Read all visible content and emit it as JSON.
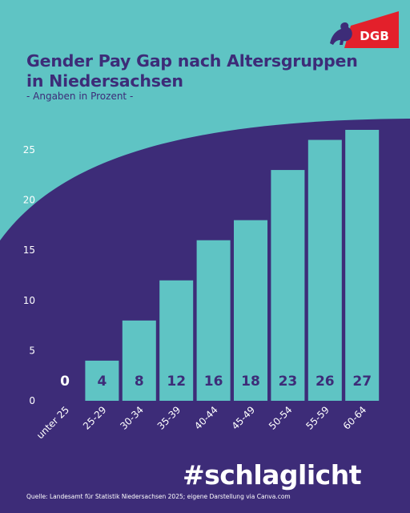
{
  "header": {
    "title": "Gender Pay Gap nach Altersgruppen in Niedersachsen",
    "subtitle": "- Angaben in Prozent -",
    "logo_text": "DGB"
  },
  "footer": {
    "hashtag": "#schlaglicht",
    "source": "Quelle: Landesamt für Statistik Niedersachsen 2025; eigene Darstellung via Canva.com"
  },
  "colors": {
    "teal": "#5fc4c4",
    "purple": "#3d2c78",
    "red": "#e3202b",
    "white": "#ffffff"
  },
  "chart_data": {
    "type": "bar",
    "title": "Gender Pay Gap nach Altersgruppen in Niedersachsen",
    "subtitle": "- Angaben in Prozent -",
    "categories": [
      "unter 25",
      "25-29",
      "30-34",
      "35-39",
      "40-44",
      "45-49",
      "50-54",
      "55-59",
      "60-64"
    ],
    "values": [
      0,
      4,
      8,
      12,
      16,
      18,
      23,
      26,
      27
    ],
    "ylim": [
      0,
      27
    ],
    "yticks": [
      0,
      5,
      10,
      15,
      20,
      25
    ],
    "grid": false,
    "legend": "none",
    "data_labels": true
  }
}
